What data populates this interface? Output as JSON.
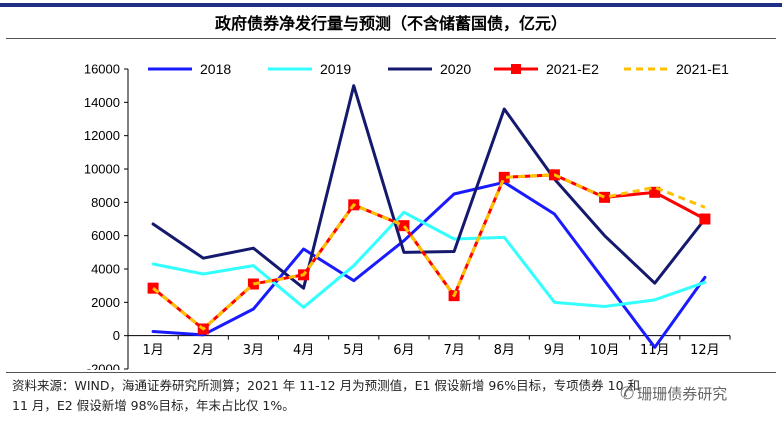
{
  "chart_data": {
    "type": "line",
    "title": "政府债券净发行量与预测（不含储蓄国债，亿元）",
    "categories": [
      "1月",
      "2月",
      "3月",
      "4月",
      "5月",
      "6月",
      "7月",
      "8月",
      "9月",
      "10月",
      "11月",
      "12月"
    ],
    "ylim": [
      -2000,
      16000
    ],
    "yticks": [
      -2000,
      0,
      2000,
      4000,
      6000,
      8000,
      10000,
      12000,
      14000,
      16000
    ],
    "series": [
      {
        "name": "2018",
        "color": "#1a1aff",
        "style": "solid",
        "values": [
          250,
          50,
          1600,
          5200,
          3300,
          5700,
          8500,
          9200,
          7300,
          3300,
          -700,
          3500
        ]
      },
      {
        "name": "2019",
        "color": "#33ffff",
        "style": "solid",
        "values": [
          4300,
          3700,
          4200,
          1700,
          4200,
          7400,
          5800,
          5900,
          2000,
          1750,
          2150,
          3200
        ]
      },
      {
        "name": "2020",
        "color": "#14196e",
        "style": "solid",
        "values": [
          6700,
          4650,
          5250,
          2850,
          15000,
          5000,
          5050,
          13600,
          9400,
          6000,
          3150,
          7000
        ]
      },
      {
        "name": "2021-E2",
        "color": "#ff0000",
        "style": "solid-marker",
        "values": [
          2850,
          400,
          3100,
          3650,
          7850,
          6600,
          2400,
          9500,
          9650,
          8300,
          8600,
          7000
        ]
      },
      {
        "name": "2021-E1",
        "color": "#ffc000",
        "style": "dashed",
        "values": [
          2850,
          400,
          3100,
          3650,
          7850,
          6600,
          2400,
          9500,
          9650,
          8300,
          8900,
          7700
        ]
      }
    ]
  },
  "footnote": {
    "line1": "资料来源：WIND，海通证券研究所测算；2021 年 11-12 月为预测值，E1 假设新增 96%目标，专项债券 10 和",
    "line2": "11 月，E2 假设新增 98%目标，年末占比仅 1%。"
  },
  "watermark": {
    "icon": "wechat-icon",
    "text": "珊珊债券研究"
  }
}
